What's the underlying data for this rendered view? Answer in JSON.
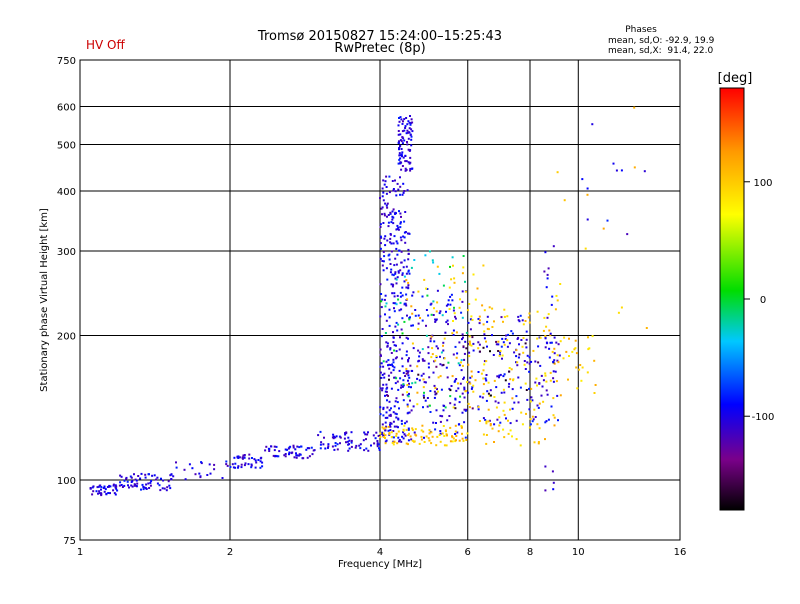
{
  "header": {
    "hv_status": "HV Off",
    "title": "Tromsø 20150827 15:24:00–15:25:43",
    "subtitle": "RwPretec (8p)",
    "phases_title": "Phases",
    "phases_o": "mean, sd,O: -92.9, 19.9",
    "phases_x": "mean, sd,X:  91.4, 22.0"
  },
  "colors": {
    "hv_status": "#cc0000",
    "grid": "#000000"
  },
  "chart_data": {
    "type": "scatter",
    "xlabel": "Frequency [MHz]",
    "ylabel": "Stationary phase Virtual Height [km]",
    "xscale": "log",
    "yscale": "log",
    "xlim": [
      1,
      16
    ],
    "ylim": [
      75,
      750
    ],
    "xticks": [
      1,
      2,
      4,
      6,
      8,
      10,
      16
    ],
    "xtick_labels": [
      "1",
      "2",
      "4",
      "6",
      "8",
      "10",
      "16"
    ],
    "yticks": [
      75,
      100,
      200,
      300,
      400,
      500,
      600,
      750
    ],
    "ytick_labels": [
      "75",
      "100",
      "200",
      "300",
      "400",
      "500",
      "600",
      "750"
    ],
    "grid": true,
    "colorbar": {
      "label": "[deg]",
      "range": [
        -180,
        180
      ],
      "ticks": [
        100,
        0,
        -100
      ],
      "tick_labels": [
        "100",
        "0",
        "-100"
      ]
    },
    "phase_values": [
      -120,
      -108,
      -96,
      -85,
      -75,
      20,
      60,
      100,
      112,
      125
    ],
    "clusters": [
      {
        "x": [
          1.05,
          1.2
        ],
        "y": [
          93,
          98
        ],
        "n": 45,
        "phase": -100
      },
      {
        "x": [
          1.2,
          1.55
        ],
        "y": [
          95,
          103
        ],
        "n": 70,
        "phase": -100
      },
      {
        "x": [
          1.55,
          1.95
        ],
        "y": [
          100,
          109
        ],
        "n": 18,
        "phase": -100
      },
      {
        "x": [
          1.95,
          2.35
        ],
        "y": [
          106,
          113
        ],
        "n": 45,
        "phase": -100
      },
      {
        "x": [
          2.35,
          3.0
        ],
        "y": [
          111,
          118
        ],
        "n": 55,
        "phase": -100
      },
      {
        "x": [
          3.0,
          4.0
        ],
        "y": [
          115,
          126
        ],
        "n": 70,
        "phase": -100
      },
      {
        "x": [
          4.0,
          4.6
        ],
        "y": [
          120,
          140
        ],
        "n": 60,
        "phase": -100
      },
      {
        "x": [
          4.0,
          4.6
        ],
        "y": [
          140,
          330
        ],
        "n": 230,
        "phase": -100
      },
      {
        "x": [
          4.0,
          4.55
        ],
        "y": [
          330,
          430
        ],
        "n": 70,
        "phase": -100
      },
      {
        "x": [
          4.35,
          4.65
        ],
        "y": [
          440,
          580
        ],
        "n": 90,
        "phase": -100
      },
      {
        "x": [
          4.6,
          6.0
        ],
        "y": [
          120,
          250
        ],
        "n": 160,
        "phase": -100
      },
      {
        "x": [
          6.0,
          8.0
        ],
        "y": [
          130,
          220
        ],
        "n": 110,
        "phase": -100
      },
      {
        "x": [
          8.0,
          9.2
        ],
        "y": [
          130,
          200
        ],
        "n": 40,
        "phase": -100
      },
      {
        "x": [
          4.0,
          6.0
        ],
        "y": [
          118,
          130
        ],
        "n": 90,
        "phase": 100
      },
      {
        "x": [
          4.5,
          6.5
        ],
        "y": [
          140,
          280
        ],
        "n": 80,
        "phase": 100
      },
      {
        "x": [
          6.0,
          9.0
        ],
        "y": [
          118,
          230
        ],
        "n": 130,
        "phase": 100
      },
      {
        "x": [
          9.0,
          11.0
        ],
        "y": [
          150,
          200
        ],
        "n": 30,
        "phase": 100
      },
      {
        "x": [
          4.0,
          6.0
        ],
        "y": [
          140,
          300
        ],
        "n": 50,
        "phase": -15
      },
      {
        "x": [
          4.0,
          9.0
        ],
        "y": [
          140,
          200
        ],
        "n": 30,
        "phase": -160
      },
      {
        "x": [
          8.5,
          9.0
        ],
        "y": [
          95,
          320
        ],
        "n": 25,
        "phase": -100
      },
      {
        "x": [
          9.0,
          14.0
        ],
        "y": [
          200,
          600
        ],
        "n": 14,
        "phase": 100
      },
      {
        "x": [
          10.0,
          14.0
        ],
        "y": [
          300,
          600
        ],
        "n": 10,
        "phase": -100
      }
    ]
  }
}
